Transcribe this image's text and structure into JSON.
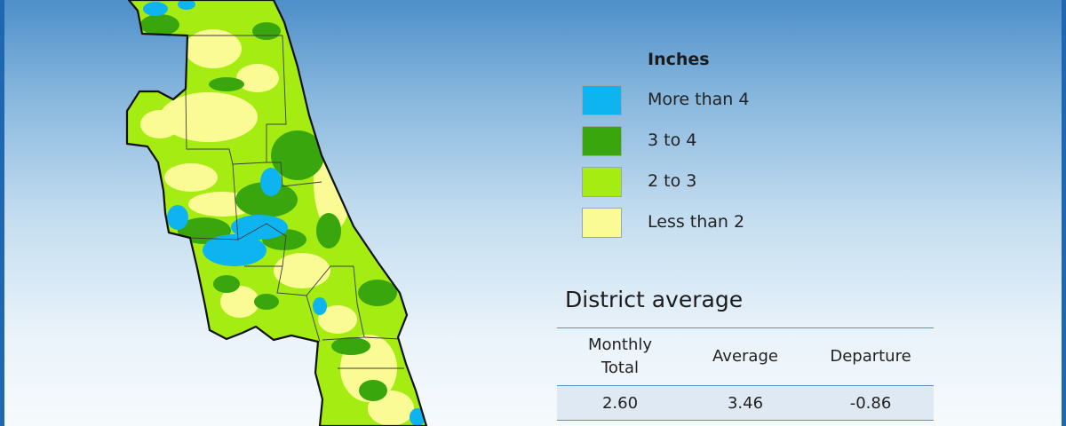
{
  "legend": {
    "title": "Inches",
    "items": [
      {
        "label": "More than 4",
        "color": "#0db4f0"
      },
      {
        "label": "3 to 4",
        "color": "#3aa60e"
      },
      {
        "label": "2 to 3",
        "color": "#a5ec12"
      },
      {
        "label": "Less than 2",
        "color": "#fbfb96"
      }
    ]
  },
  "district_average": {
    "heading": "District average",
    "columns": [
      "Monthly\nTotal",
      "Average",
      "Departure"
    ],
    "row": [
      "2.60",
      "3.46",
      "-0.86"
    ]
  },
  "colors": {
    "border_accent": "#1f67b1",
    "table_line": "#5a90c4",
    "table_row_bg": "#dfe9f4"
  }
}
